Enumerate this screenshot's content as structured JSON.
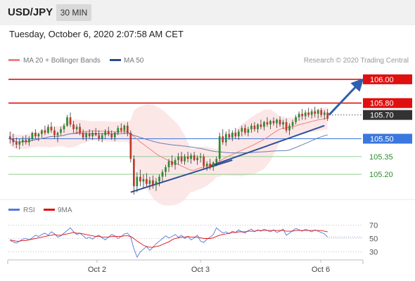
{
  "header": {
    "symbol": "USD/JPY",
    "timeframe": "30 MIN",
    "datetime": "Tuesday, October 6, 2020 2:07:58 AM CET"
  },
  "chart_data": [
    {
      "type": "candlestick",
      "legend": [
        {
          "label": "MA 20 + Bollinger Bands",
          "color": "#f08080"
        },
        {
          "label": "MA 50",
          "color": "#2b4c8c"
        }
      ],
      "legend_placement": "top-left",
      "credit": "Research © 2020 Trading Central",
      "x_tick_labels": [
        "Oct 2",
        "Oct 3",
        "Oct 6"
      ],
      "y_range": [
        105.0,
        106.1
      ],
      "grid": false,
      "last_price": 105.7,
      "candles": [
        [
          105.52,
          105.56,
          105.46,
          105.5
        ],
        [
          105.5,
          105.54,
          105.44,
          105.47
        ],
        [
          105.47,
          105.51,
          105.42,
          105.45
        ],
        [
          105.45,
          105.5,
          105.41,
          105.47
        ],
        [
          105.47,
          105.52,
          105.44,
          105.49
        ],
        [
          105.49,
          105.53,
          105.45,
          105.47
        ],
        [
          105.47,
          105.52,
          105.44,
          105.5
        ],
        [
          105.5,
          105.56,
          105.48,
          105.55
        ],
        [
          105.55,
          105.58,
          105.5,
          105.52
        ],
        [
          105.52,
          105.55,
          105.48,
          105.54
        ],
        [
          105.54,
          105.58,
          105.51,
          105.57
        ],
        [
          105.57,
          105.61,
          105.53,
          105.55
        ],
        [
          105.55,
          105.62,
          105.54,
          105.6
        ],
        [
          105.6,
          105.64,
          105.55,
          105.57
        ],
        [
          105.57,
          105.6,
          105.5,
          105.53
        ],
        [
          105.53,
          105.56,
          105.47,
          105.55
        ],
        [
          105.55,
          105.6,
          105.53,
          105.58
        ],
        [
          105.58,
          105.63,
          105.55,
          105.61
        ],
        [
          105.61,
          105.7,
          105.6,
          105.68
        ],
        [
          105.68,
          105.72,
          105.6,
          105.62
        ],
        [
          105.62,
          105.65,
          105.55,
          105.58
        ],
        [
          105.58,
          105.62,
          105.54,
          105.6
        ],
        [
          105.6,
          105.63,
          105.53,
          105.55
        ],
        [
          105.55,
          105.58,
          105.49,
          105.51
        ],
        [
          105.51,
          105.56,
          105.48,
          105.54
        ],
        [
          105.54,
          105.58,
          105.5,
          105.52
        ],
        [
          105.52,
          105.57,
          105.49,
          105.55
        ],
        [
          105.55,
          105.59,
          105.52,
          105.53
        ],
        [
          105.53,
          105.57,
          105.48,
          105.5
        ],
        [
          105.5,
          105.55,
          105.47,
          105.53
        ],
        [
          105.53,
          105.58,
          105.5,
          105.56
        ],
        [
          105.56,
          105.6,
          105.52,
          105.54
        ],
        [
          105.54,
          105.57,
          105.49,
          105.51
        ],
        [
          105.51,
          105.56,
          105.48,
          105.55
        ],
        [
          105.55,
          105.61,
          105.53,
          105.59
        ],
        [
          105.59,
          105.63,
          105.55,
          105.57
        ],
        [
          105.57,
          105.62,
          105.54,
          105.61
        ],
        [
          105.61,
          105.64,
          105.52,
          105.55
        ],
        [
          105.55,
          105.57,
          105.3,
          105.33
        ],
        [
          105.33,
          105.36,
          105.03,
          105.1
        ],
        [
          105.1,
          105.22,
          105.05,
          105.18
        ],
        [
          105.18,
          105.24,
          105.1,
          105.14
        ],
        [
          105.14,
          105.2,
          105.08,
          105.16
        ],
        [
          105.16,
          105.21,
          105.1,
          105.12
        ],
        [
          105.12,
          105.18,
          105.07,
          105.15
        ],
        [
          105.15,
          105.19,
          105.08,
          105.11
        ],
        [
          105.11,
          105.17,
          105.06,
          105.14
        ],
        [
          105.14,
          105.2,
          105.1,
          105.18
        ],
        [
          105.18,
          105.24,
          105.14,
          105.22
        ],
        [
          105.22,
          105.28,
          105.18,
          105.26
        ],
        [
          105.26,
          105.33,
          105.22,
          105.31
        ],
        [
          105.31,
          105.36,
          105.26,
          105.28
        ],
        [
          105.28,
          105.34,
          105.24,
          105.32
        ],
        [
          105.32,
          105.38,
          105.28,
          105.35
        ],
        [
          105.35,
          105.39,
          105.29,
          105.31
        ],
        [
          105.31,
          105.37,
          105.28,
          105.35
        ],
        [
          105.35,
          105.39,
          105.3,
          105.33
        ],
        [
          105.33,
          105.38,
          105.29,
          105.36
        ],
        [
          105.36,
          105.39,
          105.31,
          105.32
        ],
        [
          105.32,
          105.36,
          105.28,
          105.34
        ],
        [
          105.34,
          105.38,
          105.3,
          105.35
        ],
        [
          105.35,
          105.37,
          105.25,
          105.27
        ],
        [
          105.27,
          105.31,
          105.23,
          105.29
        ],
        [
          105.29,
          105.33,
          105.24,
          105.26
        ],
        [
          105.26,
          105.31,
          105.23,
          105.3
        ],
        [
          105.3,
          105.35,
          105.27,
          105.33
        ],
        [
          105.33,
          105.55,
          105.31,
          105.52
        ],
        [
          105.52,
          105.58,
          105.45,
          105.47
        ],
        [
          105.47,
          105.56,
          105.44,
          105.54
        ],
        [
          105.54,
          105.58,
          105.49,
          105.51
        ],
        [
          105.51,
          105.57,
          105.48,
          105.55
        ],
        [
          105.55,
          105.59,
          105.5,
          105.52
        ],
        [
          105.52,
          105.58,
          105.49,
          105.56
        ],
        [
          105.56,
          105.61,
          105.52,
          105.59
        ],
        [
          105.59,
          105.62,
          105.53,
          105.55
        ],
        [
          105.55,
          105.6,
          105.52,
          105.58
        ],
        [
          105.58,
          105.63,
          105.55,
          105.61
        ],
        [
          105.61,
          105.64,
          105.56,
          105.58
        ],
        [
          105.58,
          105.63,
          105.55,
          105.62
        ],
        [
          105.62,
          105.66,
          105.58,
          105.6
        ],
        [
          105.6,
          105.65,
          105.57,
          105.64
        ],
        [
          105.64,
          105.68,
          105.6,
          105.62
        ],
        [
          105.62,
          105.66,
          105.58,
          105.65
        ],
        [
          105.65,
          105.68,
          105.61,
          105.63
        ],
        [
          105.63,
          105.67,
          105.59,
          105.66
        ],
        [
          105.66,
          105.69,
          105.6,
          105.62
        ],
        [
          105.62,
          105.66,
          105.58,
          105.64
        ],
        [
          105.64,
          105.67,
          105.55,
          105.57
        ],
        [
          105.57,
          105.63,
          105.53,
          105.61
        ],
        [
          105.61,
          105.66,
          105.58,
          105.64
        ],
        [
          105.64,
          105.7,
          105.62,
          105.68
        ],
        [
          105.68,
          105.73,
          105.65,
          105.71
        ],
        [
          105.71,
          105.75,
          105.66,
          105.69
        ],
        [
          105.69,
          105.74,
          105.66,
          105.72
        ],
        [
          105.72,
          105.76,
          105.68,
          105.7
        ],
        [
          105.7,
          105.75,
          105.67,
          105.73
        ],
        [
          105.73,
          105.77,
          105.68,
          105.71
        ],
        [
          105.71,
          105.75,
          105.67,
          105.74
        ],
        [
          105.74,
          105.76,
          105.68,
          105.7
        ],
        [
          105.7,
          105.74,
          105.66,
          105.72
        ],
        [
          105.72,
          105.75,
          105.65,
          105.67
        ]
      ],
      "horizontal_levels": [
        {
          "label": "106.00",
          "value": 106.0,
          "color": "#e01010",
          "style": "box"
        },
        {
          "label": "105.80",
          "value": 105.8,
          "color": "#e01010",
          "style": "box"
        },
        {
          "label": "105.70",
          "value": 105.7,
          "color": "#333333",
          "style": "box"
        },
        {
          "label": "105.50",
          "value": 105.5,
          "color": "#3a78e0",
          "style": "box"
        },
        {
          "label": "105.35",
          "value": 105.35,
          "color": "#2e8b2e",
          "style": "text"
        },
        {
          "label": "105.20",
          "value": 105.2,
          "color": "#2e8b2e",
          "style": "text"
        }
      ]
    },
    {
      "type": "line",
      "legend": [
        {
          "label": "RSI",
          "color": "#5577dd"
        },
        {
          "label": "9MA",
          "color": "#e01010"
        }
      ],
      "y_tick_labels": [
        "70",
        "50",
        "30"
      ],
      "y_range": [
        20,
        80
      ],
      "series": [
        {
          "name": "RSI",
          "values": [
            47,
            45,
            43,
            46,
            49,
            50,
            48,
            51,
            55,
            53,
            56,
            58,
            55,
            60,
            57,
            52,
            54,
            58,
            62,
            66,
            60,
            56,
            58,
            54,
            50,
            52,
            49,
            53,
            55,
            51,
            48,
            52,
            56,
            54,
            50,
            53,
            57,
            58,
            52,
            35,
            22,
            30,
            34,
            38,
            32,
            37,
            42,
            46,
            50,
            54,
            51,
            53,
            56,
            52,
            55,
            50,
            53,
            48,
            51,
            55,
            46,
            44,
            49,
            52,
            56,
            66,
            62,
            58,
            60,
            57,
            61,
            59,
            63,
            60,
            58,
            62,
            64,
            60,
            63,
            61,
            64,
            62,
            60,
            63,
            59,
            61,
            64,
            55,
            58,
            62,
            65,
            63,
            61,
            64,
            62,
            60,
            63,
            61,
            59,
            57,
            52
          ]
        },
        {
          "name": "9MA",
          "values": [
            48,
            47,
            46,
            46,
            47,
            47,
            48,
            49,
            50,
            51,
            52,
            53,
            54,
            55,
            56,
            55,
            55,
            56,
            57,
            58,
            59,
            58,
            58,
            57,
            56,
            55,
            54,
            53,
            53,
            52,
            52,
            52,
            53,
            53,
            53,
            53,
            54,
            54,
            53,
            50,
            46,
            43,
            40,
            38,
            37,
            37,
            38,
            39,
            41,
            43,
            45,
            48,
            50,
            51,
            52,
            52,
            53,
            52,
            52,
            52,
            51,
            50,
            50,
            50,
            51,
            53,
            55,
            56,
            57,
            58,
            59,
            59,
            60,
            60,
            60,
            61,
            61,
            61,
            62,
            62,
            62,
            62,
            62,
            62,
            62,
            62,
            62,
            61,
            61,
            61,
            62,
            62,
            62,
            62,
            62,
            62,
            62,
            62,
            62,
            61,
            60
          ]
        }
      ]
    }
  ]
}
